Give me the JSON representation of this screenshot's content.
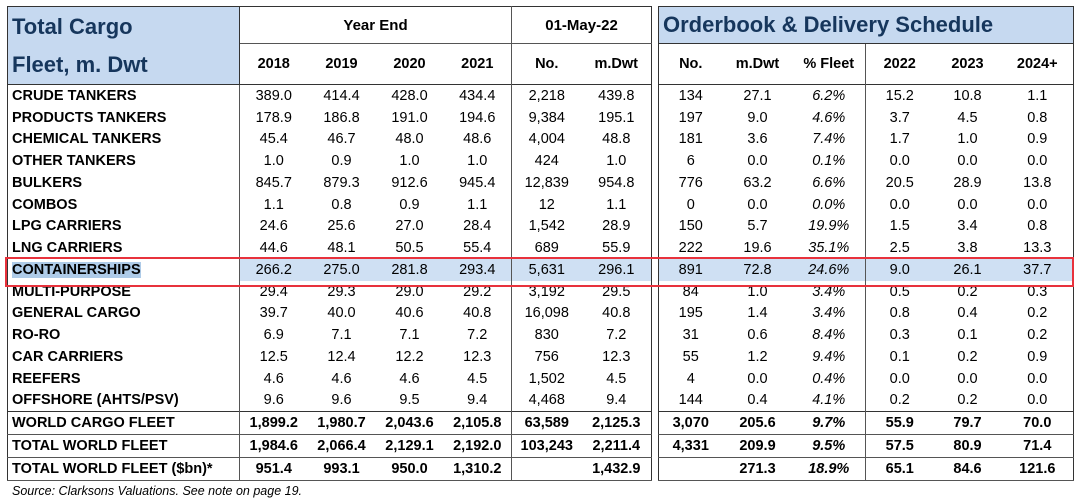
{
  "left": {
    "title_line1": "Total Cargo",
    "title_line2": "Fleet, m. Dwt",
    "group_year_end": "Year End",
    "group_date": "01-May-22",
    "col_2018": "2018",
    "col_2019": "2019",
    "col_2020": "2020",
    "col_2021": "2021",
    "col_no": "No.",
    "col_mdwt": "m.Dwt",
    "rows": [
      {
        "name": "CRUDE TANKERS",
        "y2018": "389.0",
        "y2019": "414.4",
        "y2020": "428.0",
        "y2021": "434.4",
        "no": "2,218",
        "mdwt": "439.8"
      },
      {
        "name": "PRODUCTS TANKERS",
        "y2018": "178.9",
        "y2019": "186.8",
        "y2020": "191.0",
        "y2021": "194.6",
        "no": "9,384",
        "mdwt": "195.1"
      },
      {
        "name": "CHEMICAL TANKERS",
        "y2018": "45.4",
        "y2019": "46.7",
        "y2020": "48.0",
        "y2021": "48.6",
        "no": "4,004",
        "mdwt": "48.8"
      },
      {
        "name": "OTHER TANKERS",
        "y2018": "1.0",
        "y2019": "0.9",
        "y2020": "1.0",
        "y2021": "1.0",
        "no": "424",
        "mdwt": "1.0"
      },
      {
        "name": "BULKERS",
        "y2018": "845.7",
        "y2019": "879.3",
        "y2020": "912.6",
        "y2021": "945.4",
        "no": "12,839",
        "mdwt": "954.8"
      },
      {
        "name": "COMBOS",
        "y2018": "1.1",
        "y2019": "0.8",
        "y2020": "0.9",
        "y2021": "1.1",
        "no": "12",
        "mdwt": "1.1"
      },
      {
        "name": "LPG CARRIERS",
        "y2018": "24.6",
        "y2019": "25.6",
        "y2020": "27.0",
        "y2021": "28.4",
        "no": "1,542",
        "mdwt": "28.9"
      },
      {
        "name": "LNG CARRIERS",
        "y2018": "44.6",
        "y2019": "48.1",
        "y2020": "50.5",
        "y2021": "55.4",
        "no": "689",
        "mdwt": "55.9"
      },
      {
        "name": "CONTAINERSHIPS",
        "y2018": "266.2",
        "y2019": "275.0",
        "y2020": "281.8",
        "y2021": "293.4",
        "no": "5,631",
        "mdwt": "296.1"
      },
      {
        "name": "MULTI-PURPOSE",
        "y2018": "29.4",
        "y2019": "29.3",
        "y2020": "29.0",
        "y2021": "29.2",
        "no": "3,192",
        "mdwt": "29.5"
      },
      {
        "name": "GENERAL CARGO",
        "y2018": "39.7",
        "y2019": "40.0",
        "y2020": "40.6",
        "y2021": "40.8",
        "no": "16,098",
        "mdwt": "40.8"
      },
      {
        "name": "RO-RO",
        "y2018": "6.9",
        "y2019": "7.1",
        "y2020": "7.1",
        "y2021": "7.2",
        "no": "830",
        "mdwt": "7.2"
      },
      {
        "name": "CAR CARRIERS",
        "y2018": "12.5",
        "y2019": "12.4",
        "y2020": "12.2",
        "y2021": "12.3",
        "no": "756",
        "mdwt": "12.3"
      },
      {
        "name": "REEFERS",
        "y2018": "4.6",
        "y2019": "4.6",
        "y2020": "4.6",
        "y2021": "4.5",
        "no": "1,502",
        "mdwt": "4.5"
      },
      {
        "name": "OFFSHORE (AHTS/PSV)",
        "y2018": "9.6",
        "y2019": "9.6",
        "y2020": "9.5",
        "y2021": "9.4",
        "no": "4,468",
        "mdwt": "9.4"
      }
    ],
    "totals": [
      {
        "name": "WORLD CARGO FLEET",
        "y2018": "1,899.2",
        "y2019": "1,980.7",
        "y2020": "2,043.6",
        "y2021": "2,105.8",
        "no": "63,589",
        "mdwt": "2,125.3"
      },
      {
        "name": "TOTAL WORLD FLEET",
        "y2018": "1,984.6",
        "y2019": "2,066.4",
        "y2020": "2,129.1",
        "y2021": "2,192.0",
        "no": "103,243",
        "mdwt": "2,211.4"
      },
      {
        "name": "TOTAL WORLD FLEET ($bn)*",
        "y2018": "951.4",
        "y2019": "993.1",
        "y2020": "950.0",
        "y2021": "1,310.2",
        "no": "",
        "mdwt": "1,432.9"
      }
    ]
  },
  "right": {
    "title": "Orderbook & Delivery Schedule",
    "col_no": "No.",
    "col_mdwt": "m.Dwt",
    "col_pct": "% Fleet",
    "col_2022": "2022",
    "col_2023": "2023",
    "col_2024": "2024+",
    "rows": [
      {
        "no": "134",
        "mdwt": "27.1",
        "pct": "6.2%",
        "d2022": "15.2",
        "d2023": "10.8",
        "d2024": "1.1"
      },
      {
        "no": "197",
        "mdwt": "9.0",
        "pct": "4.6%",
        "d2022": "3.7",
        "d2023": "4.5",
        "d2024": "0.8"
      },
      {
        "no": "181",
        "mdwt": "3.6",
        "pct": "7.4%",
        "d2022": "1.7",
        "d2023": "1.0",
        "d2024": "0.9"
      },
      {
        "no": "6",
        "mdwt": "0.0",
        "pct": "0.1%",
        "d2022": "0.0",
        "d2023": "0.0",
        "d2024": "0.0"
      },
      {
        "no": "776",
        "mdwt": "63.2",
        "pct": "6.6%",
        "d2022": "20.5",
        "d2023": "28.9",
        "d2024": "13.8"
      },
      {
        "no": "0",
        "mdwt": "0.0",
        "pct": "0.0%",
        "d2022": "0.0",
        "d2023": "0.0",
        "d2024": "0.0"
      },
      {
        "no": "150",
        "mdwt": "5.7",
        "pct": "19.9%",
        "d2022": "1.5",
        "d2023": "3.4",
        "d2024": "0.8"
      },
      {
        "no": "222",
        "mdwt": "19.6",
        "pct": "35.1%",
        "d2022": "2.5",
        "d2023": "3.8",
        "d2024": "13.3"
      },
      {
        "no": "891",
        "mdwt": "72.8",
        "pct": "24.6%",
        "d2022": "9.0",
        "d2023": "26.1",
        "d2024": "37.7"
      },
      {
        "no": "84",
        "mdwt": "1.0",
        "pct": "3.4%",
        "d2022": "0.5",
        "d2023": "0.2",
        "d2024": "0.3"
      },
      {
        "no": "195",
        "mdwt": "1.4",
        "pct": "3.4%",
        "d2022": "0.8",
        "d2023": "0.4",
        "d2024": "0.2"
      },
      {
        "no": "31",
        "mdwt": "0.6",
        "pct": "8.4%",
        "d2022": "0.3",
        "d2023": "0.1",
        "d2024": "0.2"
      },
      {
        "no": "55",
        "mdwt": "1.2",
        "pct": "9.4%",
        "d2022": "0.1",
        "d2023": "0.2",
        "d2024": "0.9"
      },
      {
        "no": "4",
        "mdwt": "0.0",
        "pct": "0.4%",
        "d2022": "0.0",
        "d2023": "0.0",
        "d2024": "0.0"
      },
      {
        "no": "144",
        "mdwt": "0.4",
        "pct": "4.1%",
        "d2022": "0.2",
        "d2023": "0.2",
        "d2024": "0.0"
      }
    ],
    "totals": [
      {
        "no": "3,070",
        "mdwt": "205.6",
        "pct": "9.7%",
        "d2022": "55.9",
        "d2023": "79.7",
        "d2024": "70.0"
      },
      {
        "no": "4,331",
        "mdwt": "209.9",
        "pct": "9.5%",
        "d2022": "57.5",
        "d2023": "80.9",
        "d2024": "71.4"
      },
      {
        "no": "",
        "mdwt": "271.3",
        "pct": "18.9%",
        "d2022": "65.1",
        "d2023": "84.6",
        "d2024": "121.6"
      }
    ]
  },
  "highlight_row_index": 8,
  "source_note": "Source: Clarksons Valuations. See note on page 19.",
  "colors": {
    "title_bg": "#c6d9f0",
    "title_text": "#16365c",
    "highlight_box": "#e8323c",
    "selection": "#cfe0f3"
  }
}
